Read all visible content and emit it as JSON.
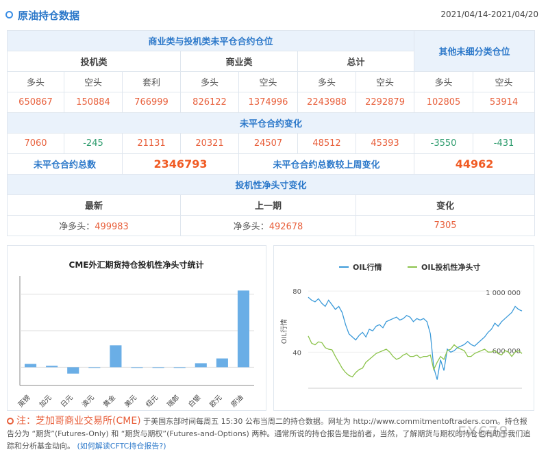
{
  "header": {
    "title": "原油持仓数据",
    "date_range": "2021/04/14-2021/04/20"
  },
  "table": {
    "group_commercial_speculative": "商业类与投机类未平仓合约仓位",
    "group_other": "其他未细分类仓位",
    "sub_speculative": "投机类",
    "sub_commercial": "商业类",
    "sub_total": "总计",
    "cols": [
      "多头",
      "空头",
      "套利",
      "多头",
      "空头",
      "多头",
      "空头",
      "多头",
      "空头"
    ],
    "values": [
      "650867",
      "150884",
      "766999",
      "826122",
      "1374996",
      "2243988",
      "2292879",
      "102805",
      "53914"
    ],
    "oi_change_title": "未平仓合约变化",
    "oi_changes": [
      "7060",
      "-245",
      "21131",
      "20321",
      "24507",
      "48512",
      "45393",
      "-3550",
      "-431"
    ],
    "oi_total_label": "未平仓合约总数",
    "oi_total_value": "2346793",
    "oi_weekly_label": "未平仓合约总数较上周变化",
    "oi_weekly_value": "44962",
    "spec_net_title": "投机性净头寸变化",
    "net_headers": [
      "最新",
      "上一期",
      "变化"
    ],
    "net_prefix": "净多头：",
    "net_latest": "499983",
    "net_previous": "492678",
    "net_change": "7305"
  },
  "chart_data": [
    {
      "type": "bar",
      "title": "CME外汇期货持仓投机性净头寸统计",
      "categories": [
        "英镑",
        "加元",
        "日元",
        "澳元",
        "黄金",
        "美元",
        "纽元",
        "瑞郎",
        "白银",
        "欧元",
        "原油"
      ],
      "values": [
        0.018,
        0.008,
        -0.035,
        0.0,
        0.12,
        -0.002,
        0.0,
        0.0,
        0.022,
        0.048,
        0.42
      ],
      "grid": true,
      "legend": "none"
    },
    {
      "type": "line",
      "series": [
        {
          "name": "OIL行情",
          "color": "#3b9ad9",
          "axis": "left",
          "values": [
            76,
            74,
            73,
            75,
            72,
            70,
            74,
            71,
            68,
            70,
            66,
            58,
            52,
            50,
            48,
            51,
            53,
            50,
            55,
            54,
            57,
            58,
            56,
            60,
            61,
            62,
            63,
            61,
            62,
            64,
            63,
            60,
            62,
            61,
            62,
            60,
            52,
            30,
            22,
            35,
            28,
            42,
            40,
            41,
            43,
            44,
            45,
            47,
            45,
            44,
            46,
            48,
            50,
            53,
            55,
            59,
            57,
            60,
            62,
            64,
            66,
            70,
            68,
            67
          ]
        },
        {
          "name": "OIL投机性净头寸",
          "color": "#8bc34a",
          "axis": "right",
          "values": [
            700000,
            650000,
            640000,
            660000,
            655000,
            620000,
            610000,
            605000,
            560000,
            520000,
            480000,
            450000,
            430000,
            420000,
            450000,
            470000,
            480000,
            520000,
            540000,
            560000,
            580000,
            590000,
            600000,
            610000,
            590000,
            560000,
            540000,
            550000,
            570000,
            580000,
            560000,
            560000,
            570000,
            550000,
            560000,
            560000,
            570000,
            470000,
            520000,
            560000,
            540000,
            600000,
            610000,
            640000,
            620000,
            610000,
            600000,
            560000,
            560000,
            580000,
            590000,
            600000,
            610000,
            590000,
            590000,
            600000,
            580000,
            570000,
            600000,
            590000,
            560000,
            590000,
            600000,
            580000
          ]
        }
      ],
      "left_axis": {
        "label": "OIL行情",
        "ticks": [
          "80",
          "40"
        ]
      },
      "right_axis": {
        "ticks": [
          "1 000 000",
          "600 000"
        ]
      },
      "legend": "top"
    }
  ],
  "note": {
    "lead": "注：芝加哥商业交易所(CME)",
    "text": "于美国东部时间每周五 15:30 公布当周二的持仓数据。网址为 http://www.commitmentoftraders.com。持仓报告分为 “期货”(Futures-Only) 和 “期货与期权”(Futures-and-Options) 两种。通常所说的持仓报告是指前者，当然，了解期货与期权的持仓也有助于我们追踪和分析基金动向。",
    "link": "(如何解读CFTC持仓报告?)"
  },
  "watermark": "FX678"
}
